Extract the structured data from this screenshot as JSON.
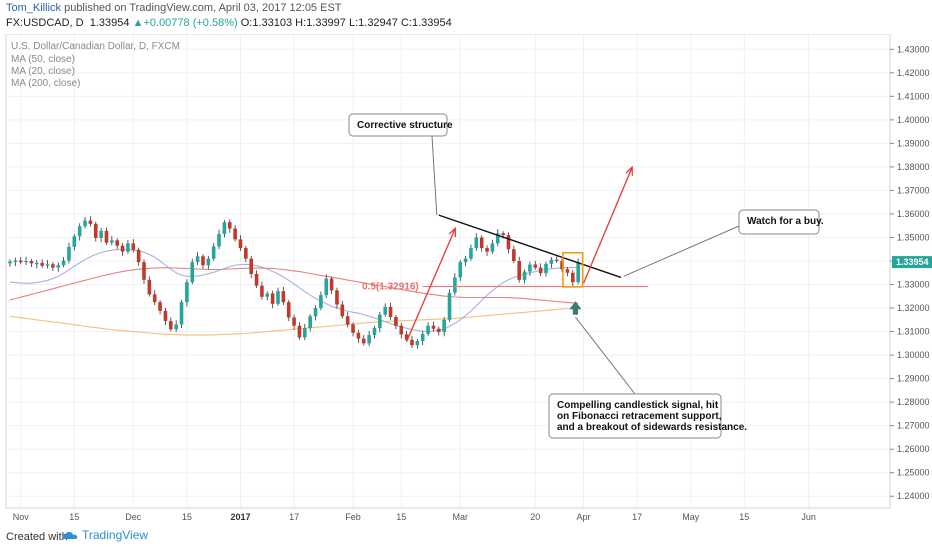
{
  "header": {
    "author": "Tom_Killick",
    "published": "published on TradingView.com, April 03, 2017 12:05 EST",
    "symbol": "FX:USDCAD, D",
    "last": "1.33954",
    "change": "+0.00778 (+0.58%)",
    "ohlc": "O:1.33103 H:1.33997 L:1.32947 C:1.33954"
  },
  "legend": {
    "title": "U.S. Dollar/Canadian Dollar, D, FXCM",
    "ma50": "MA (50, close)",
    "ma20": "MA (20, close)",
    "ma200": "MA (200, close)"
  },
  "footer": {
    "made_with": "Created with",
    "brand": "TradingView"
  },
  "colors": {
    "up": "#26a69a",
    "down": "#c0392b",
    "ma20": "#9fa8da",
    "ma50": "#e57373",
    "ma200": "#f5b76e",
    "fib": "#e57373",
    "arrow": "#e53935",
    "price_tag": "#26a69a",
    "signal_box": "#f39c12",
    "marker": "#3e7b6e"
  },
  "annotations": {
    "corrective": "Corrective structure",
    "watch": "Watch for a buy.",
    "fib_label": "0.5(1.32916)",
    "signal": [
      "Compelling candlestick signal, hit",
      "on Fibonacci retracement support,",
      "and a breakout of sidewards resistance."
    ]
  },
  "chart_data": {
    "type": "candlestick",
    "title": "U.S. Dollar/Canadian Dollar, D, FXCM",
    "y_ticks": [
      1.24,
      1.25,
      1.26,
      1.27,
      1.28,
      1.29,
      1.3,
      1.31,
      1.32,
      1.33,
      1.34,
      1.35,
      1.36,
      1.37,
      1.38,
      1.39,
      1.4,
      1.41,
      1.42,
      1.43
    ],
    "y_tick_labels": [
      "1.24000",
      "1.25000",
      "1.26000",
      "1.27000",
      "1.28000",
      "1.29000",
      "1.30000",
      "1.31000",
      "1.32000",
      "1.33000",
      "1.34000",
      "1.35000",
      "1.36000",
      "1.37000",
      "1.38000",
      "1.39000",
      "1.40000",
      "1.41000",
      "1.42000",
      "1.43000"
    ],
    "ylim": [
      1.235,
      1.4365
    ],
    "last_price": "1.33954",
    "x_labels": [
      {
        "label": "Nov",
        "i": 2,
        "bold": false
      },
      {
        "label": "15",
        "i": 12,
        "bold": false
      },
      {
        "label": "Dec",
        "i": 23,
        "bold": false
      },
      {
        "label": "15",
        "i": 33,
        "bold": false
      },
      {
        "label": "2017",
        "i": 43,
        "bold": true
      },
      {
        "label": "17",
        "i": 53,
        "bold": false
      },
      {
        "label": "Feb",
        "i": 64,
        "bold": false
      },
      {
        "label": "15",
        "i": 73,
        "bold": false
      },
      {
        "label": "Mar",
        "i": 84,
        "bold": false
      },
      {
        "label": "20",
        "i": 98,
        "bold": false
      },
      {
        "label": "Apr",
        "i": 107,
        "bold": false
      },
      {
        "label": "17",
        "i": 117,
        "bold": false
      },
      {
        "label": "May",
        "i": 127,
        "bold": false
      },
      {
        "label": "15",
        "i": 137,
        "bold": false
      },
      {
        "label": "Jun",
        "i": 149,
        "bold": false
      }
    ],
    "closes": [
      1.3398,
      1.3402,
      1.3395,
      1.34,
      1.339,
      1.3392,
      1.338,
      1.3386,
      1.3372,
      1.3382,
      1.3402,
      1.346,
      1.3505,
      1.3548,
      1.3572,
      1.3558,
      1.3498,
      1.3528,
      1.3478,
      1.3488,
      1.3465,
      1.344,
      1.3475,
      1.3448,
      1.3395,
      1.332,
      1.3258,
      1.3225,
      1.3188,
      1.3145,
      1.311,
      1.313,
      1.3225,
      1.331,
      1.3395,
      1.342,
      1.3382,
      1.341,
      1.3462,
      1.3515,
      1.3565,
      1.3538,
      1.3492,
      1.3455,
      1.341,
      1.3345,
      1.3295,
      1.3248,
      1.3262,
      1.3218,
      1.3272,
      1.3225,
      1.316,
      1.3125,
      1.3075,
      1.3115,
      1.3165,
      1.32,
      1.3255,
      1.3325,
      1.3275,
      1.3215,
      1.3165,
      1.313,
      1.3095,
      1.307,
      1.305,
      1.3085,
      1.3115,
      1.3172,
      1.3205,
      1.3162,
      1.3125,
      1.3088,
      1.3065,
      1.3042,
      1.306,
      1.309,
      1.3125,
      1.3112,
      1.3098,
      1.315,
      1.3265,
      1.333,
      1.3395,
      1.341,
      1.3455,
      1.35,
      1.3455,
      1.344,
      1.3475,
      1.3518,
      1.351,
      1.345,
      1.34,
      1.332,
      1.3355,
      1.3385,
      1.3372,
      1.3348,
      1.3388,
      1.3405,
      1.34,
      1.3365,
      1.335,
      1.331,
      1.3395
    ],
    "ma20": [
      1.331,
      1.3308,
      1.3306,
      1.3305,
      1.3306,
      1.3308,
      1.3312,
      1.3318,
      1.3325,
      1.3335,
      1.3348,
      1.3362,
      1.3378,
      1.3392,
      1.3405,
      1.3418,
      1.3428,
      1.3436,
      1.3442,
      1.3446,
      1.3448,
      1.3449,
      1.3449,
      1.3447,
      1.3443,
      1.3437,
      1.3428,
      1.3416,
      1.34,
      1.3382,
      1.3365,
      1.335,
      1.334,
      1.3335,
      1.3334,
      1.3336,
      1.334,
      1.3346,
      1.3352,
      1.336,
      1.3368,
      1.3376,
      1.3382,
      1.3385,
      1.3386,
      1.3384,
      1.338,
      1.3374,
      1.3366,
      1.3356,
      1.3345,
      1.3332,
      1.3318,
      1.3302,
      1.3286,
      1.327,
      1.3255,
      1.3241,
      1.3229,
      1.3218,
      1.3208,
      1.32,
      1.3193,
      1.3187,
      1.3182,
      1.3178,
      1.3172,
      1.3165,
      1.3158,
      1.315,
      1.3142,
      1.3134,
      1.3126,
      1.312,
      1.3114,
      1.3109,
      1.3105,
      1.3102,
      1.3101,
      1.3102,
      1.3106,
      1.3112,
      1.3122,
      1.3135,
      1.315,
      1.3168,
      1.3188,
      1.321,
      1.3232,
      1.3254,
      1.3274,
      1.3292,
      1.3308,
      1.332,
      1.333,
      1.3338,
      1.3344,
      1.335,
      1.3355,
      1.336,
      1.3364,
      1.3367,
      1.3369,
      1.3371,
      1.3372,
      1.3372,
      1.3373
    ],
    "ma50": [
      1.3235,
      1.324,
      1.3246,
      1.3252,
      1.3258,
      1.3264,
      1.327,
      1.3276,
      1.3282,
      1.3288,
      1.3294,
      1.33,
      1.3306,
      1.3312,
      1.3318,
      1.3324,
      1.333,
      1.3336,
      1.3341,
      1.3346,
      1.3351,
      1.3355,
      1.3359,
      1.3362,
      1.3365,
      1.3367,
      1.3369,
      1.337,
      1.3371,
      1.3371,
      1.3371,
      1.337,
      1.3369,
      1.3368,
      1.3367,
      1.3366,
      1.3365,
      1.3364,
      1.3364,
      1.3364,
      1.3365,
      1.3366,
      1.3367,
      1.3368,
      1.3369,
      1.337,
      1.337,
      1.337,
      1.3369,
      1.3368,
      1.3366,
      1.3364,
      1.3361,
      1.3358,
      1.3355,
      1.3351,
      1.3347,
      1.3343,
      1.3339,
      1.3335,
      1.3331,
      1.3327,
      1.3323,
      1.3319,
      1.3315,
      1.3311,
      1.3307,
      1.3303,
      1.3299,
      1.3295,
      1.3291,
      1.3287,
      1.3283,
      1.3279,
      1.3275,
      1.3271,
      1.3267,
      1.3263,
      1.326,
      1.3257,
      1.3254,
      1.3251,
      1.3249,
      1.3247,
      1.3246,
      1.3245,
      1.3245,
      1.3245,
      1.3245,
      1.3245,
      1.3245,
      1.3245,
      1.3245,
      1.3244,
      1.3243,
      1.3242,
      1.324,
      1.3238,
      1.3236,
      1.3234,
      1.3232,
      1.323,
      1.3228,
      1.3226,
      1.3224,
      1.3222,
      1.322
    ],
    "ma200": [
      1.3165,
      1.3162,
      1.3159,
      1.3156,
      1.3153,
      1.315,
      1.3147,
      1.3144,
      1.3141,
      1.3138,
      1.3135,
      1.3132,
      1.3129,
      1.3126,
      1.3123,
      1.312,
      1.3117,
      1.3114,
      1.3111,
      1.3108,
      1.3106,
      1.3104,
      1.3102,
      1.31,
      1.3098,
      1.3096,
      1.3094,
      1.3092,
      1.309,
      1.3089,
      1.3088,
      1.3087,
      1.3086,
      1.3085,
      1.3085,
      1.3085,
      1.3085,
      1.3085,
      1.3086,
      1.3087,
      1.3088,
      1.3089,
      1.309,
      1.3091,
      1.3092,
      1.3094,
      1.3096,
      1.3098,
      1.31,
      1.3102,
      1.3104,
      1.3106,
      1.3108,
      1.311,
      1.3112,
      1.3114,
      1.3116,
      1.3118,
      1.312,
      1.3122,
      1.3124,
      1.3126,
      1.3128,
      1.313,
      1.3132,
      1.3134,
      1.3136,
      1.3138,
      1.314,
      1.3142,
      1.3143,
      1.3144,
      1.3145,
      1.3146,
      1.3147,
      1.3148,
      1.3149,
      1.315,
      1.3151,
      1.3152,
      1.3153,
      1.3154,
      1.3155,
      1.3156,
      1.3158,
      1.316,
      1.3162,
      1.3164,
      1.3166,
      1.3168,
      1.317,
      1.3172,
      1.3174,
      1.3176,
      1.3178,
      1.318,
      1.3182,
      1.3184,
      1.3186,
      1.3188,
      1.319,
      1.3192,
      1.3194,
      1.3196,
      1.3198,
      1.32,
      1.3202
    ],
    "fib_level": 1.32916,
    "trendline": [
      [
        80,
        1.3595
      ],
      [
        114,
        1.333
      ]
    ],
    "red_arrows": [
      [
        [
          74,
          1.3058
        ],
        [
          83,
          1.3535
        ]
      ],
      [
        [
          107,
          1.3305
        ],
        [
          116,
          1.3795
        ]
      ]
    ]
  }
}
